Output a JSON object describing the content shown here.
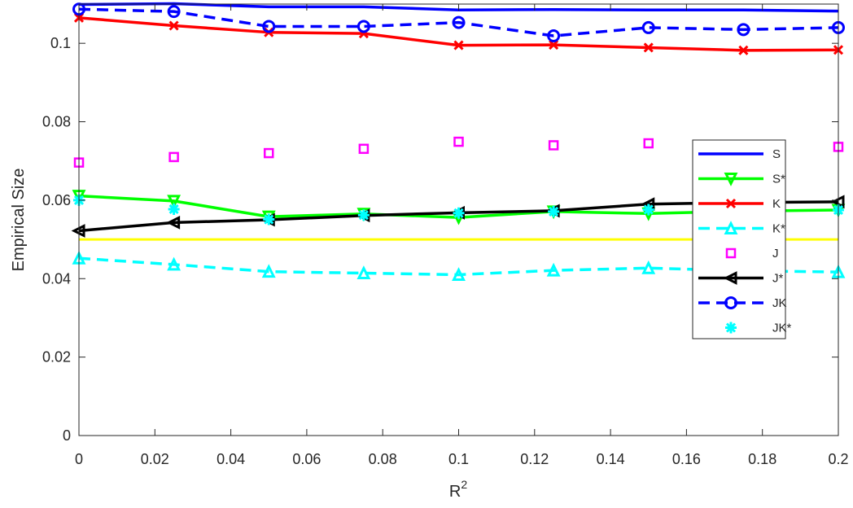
{
  "chart_data": {
    "type": "line",
    "xlabel": "R",
    "xlabel_superscript": "2",
    "ylabel": "Empirical Size",
    "xlim": [
      0,
      0.2
    ],
    "ylim": [
      0,
      0.11
    ],
    "xticks": [
      0,
      0.02,
      0.04,
      0.06,
      0.08,
      0.1,
      0.12,
      0.14,
      0.16,
      0.18,
      0.2
    ],
    "xtick_labels": [
      "0",
      "0.02",
      "0.04",
      "0.06",
      "0.08",
      "0.1",
      "0.12",
      "0.14",
      "0.16",
      "0.18",
      "0.2"
    ],
    "yticks": [
      0,
      0.02,
      0.04,
      0.06,
      0.08,
      0.1
    ],
    "ytick_labels": [
      "0",
      "0.02",
      "0.04",
      "0.06",
      "0.08",
      "0.1"
    ],
    "grid": false,
    "legend_position": "right",
    "x": [
      0,
      0.025,
      0.05,
      0.075,
      0.1,
      0.125,
      0.15,
      0.175,
      0.2
    ],
    "reference_line": {
      "y": 0.05,
      "color": "#ffff00"
    },
    "series": [
      {
        "name": "S",
        "color": "#0000ff",
        "dash": "solid",
        "marker": "none",
        "show_line": true,
        "values": [
          0.1099,
          0.1101,
          0.1093,
          0.1093,
          0.1085,
          0.1086,
          0.1085,
          0.1085,
          0.1082
        ]
      },
      {
        "name": "S*",
        "color": "#00ff00",
        "dash": "solid",
        "marker": "triangle-down",
        "show_line": true,
        "values": [
          0.0611,
          0.0598,
          0.0558,
          0.0565,
          0.0556,
          0.0571,
          0.0566,
          0.0572,
          0.0575
        ]
      },
      {
        "name": "K",
        "color": "#ff0000",
        "dash": "solid",
        "marker": "x",
        "show_line": true,
        "values": [
          0.1065,
          0.1045,
          0.1028,
          0.1025,
          0.0995,
          0.0996,
          0.0989,
          0.0982,
          0.0983
        ]
      },
      {
        "name": "K*",
        "color": "#00ffff",
        "dash": "dashed",
        "marker": "triangle-up",
        "show_line": true,
        "values": [
          0.0452,
          0.0436,
          0.0418,
          0.0414,
          0.041,
          0.0421,
          0.0427,
          0.042,
          0.0417
        ]
      },
      {
        "name": "J",
        "color": "#ff00ff",
        "dash": "none",
        "marker": "square",
        "show_line": false,
        "values": [
          0.0696,
          0.071,
          0.072,
          0.0731,
          0.0749,
          0.074,
          0.0745,
          0.0738,
          0.0736
        ]
      },
      {
        "name": "J*",
        "color": "#000000",
        "dash": "solid",
        "marker": "triangle-left",
        "show_line": true,
        "values": [
          0.0522,
          0.0543,
          0.055,
          0.0561,
          0.0568,
          0.0573,
          0.059,
          0.0594,
          0.0596
        ]
      },
      {
        "name": "JK",
        "color": "#0000ff",
        "dash": "dashed",
        "marker": "circle",
        "show_line": true,
        "values": [
          0.1087,
          0.1081,
          0.1043,
          0.1043,
          0.1053,
          0.1019,
          0.104,
          0.1035,
          0.104
        ]
      },
      {
        "name": "JK*",
        "color": "#00ffff",
        "dash": "none",
        "marker": "asterisk",
        "show_line": false,
        "values": [
          0.06,
          0.0577,
          0.0551,
          0.0562,
          0.0567,
          0.0571,
          0.0576,
          0.0574,
          0.0575
        ]
      }
    ]
  }
}
